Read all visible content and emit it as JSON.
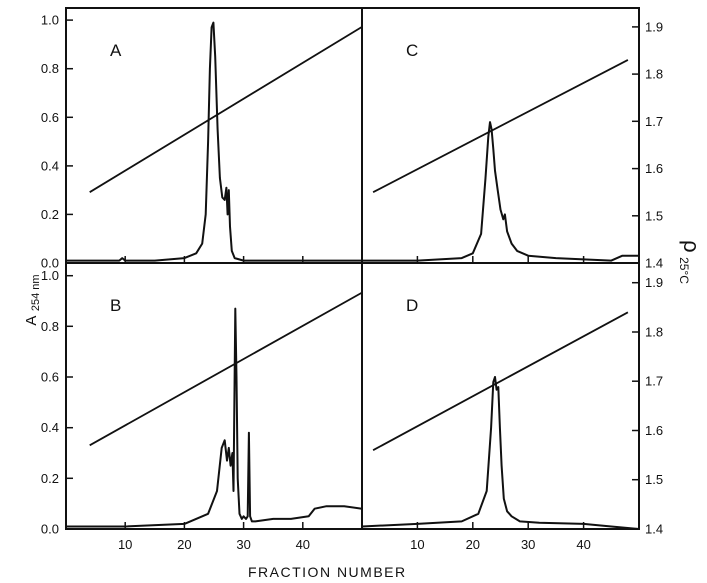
{
  "figure": {
    "x_axis_title": "FRACTION NUMBER",
    "left_axis_title_main": "A",
    "left_axis_title_sub": "254 nm",
    "right_axis_title_main": "ρ",
    "right_axis_title_sub": "25°C"
  },
  "chart_data": [
    {
      "type": "line",
      "panel": "A",
      "label": "A",
      "xlim": [
        0,
        50
      ],
      "ylim": [
        0,
        1.05
      ],
      "y2lim": [
        1.4,
        1.94
      ],
      "x_ticks": [
        10,
        20,
        30,
        40
      ],
      "x_tick_labels": [],
      "y_ticks": [
        0.0,
        0.2,
        0.4,
        0.6,
        0.8,
        1.0
      ],
      "y_tick_labels": [
        "0.0",
        "0.2",
        "0.4",
        "0.6",
        "0.8",
        "1.0"
      ],
      "y2_ticks": [],
      "y2_tick_labels": [],
      "absorbance": {
        "x": [
          0,
          5,
          9,
          9.5,
          10,
          10.5,
          15,
          20,
          22,
          23,
          23.6,
          24,
          24.3,
          24.6,
          24.9,
          25.2,
          25.6,
          26,
          26.4,
          26.8,
          27.1,
          27.3,
          27.5,
          27.7,
          28,
          28.5,
          30,
          35,
          40,
          45,
          50
        ],
        "y": [
          0.01,
          0.01,
          0.01,
          0.02,
          0.01,
          0.01,
          0.01,
          0.02,
          0.04,
          0.08,
          0.2,
          0.5,
          0.8,
          0.97,
          0.99,
          0.85,
          0.55,
          0.35,
          0.27,
          0.26,
          0.31,
          0.2,
          0.3,
          0.15,
          0.05,
          0.02,
          0.01,
          0.01,
          0.01,
          0.01,
          0.01
        ]
      },
      "density": {
        "x": [
          4,
          50
        ],
        "y": [
          1.55,
          1.9
        ]
      }
    },
    {
      "type": "line",
      "panel": "C",
      "label": "C",
      "xlim": [
        0,
        50
      ],
      "ylim": [
        0,
        1.05
      ],
      "y2lim": [
        1.4,
        1.94
      ],
      "x_ticks": [
        10,
        20,
        30,
        40
      ],
      "x_tick_labels": [],
      "y_ticks": [],
      "y_tick_labels": [],
      "y2_ticks": [
        1.4,
        1.5,
        1.6,
        1.7,
        1.8,
        1.9
      ],
      "y2_tick_labels": [
        "1.4",
        "1.5",
        "1.6",
        "1.7",
        "1.8",
        "1.9"
      ],
      "absorbance": {
        "x": [
          0,
          10,
          18,
          20,
          21.5,
          22.3,
          22.8,
          23.1,
          23.4,
          23.7,
          24,
          24.5,
          25,
          25.5,
          25.8,
          26.2,
          27,
          28,
          30,
          35,
          40,
          45,
          47,
          50
        ],
        "y": [
          0.01,
          0.01,
          0.02,
          0.04,
          0.12,
          0.35,
          0.52,
          0.58,
          0.55,
          0.47,
          0.38,
          0.3,
          0.22,
          0.18,
          0.2,
          0.13,
          0.08,
          0.05,
          0.03,
          0.02,
          0.015,
          0.01,
          0.03,
          0.03
        ]
      },
      "density": {
        "x": [
          2,
          48
        ],
        "y": [
          1.55,
          1.83
        ]
      }
    },
    {
      "type": "line",
      "panel": "B",
      "label": "B",
      "xlim": [
        0,
        50
      ],
      "ylim": [
        0,
        1.05
      ],
      "y2lim": [
        1.4,
        1.94
      ],
      "x_ticks": [
        10,
        20,
        30,
        40
      ],
      "x_tick_labels": [
        "10",
        "20",
        "30",
        "40"
      ],
      "y_ticks": [
        0.0,
        0.2,
        0.4,
        0.6,
        0.8,
        1.0
      ],
      "y_tick_labels": [
        "0.0",
        "0.2",
        "0.4",
        "0.6",
        "0.8",
        "1.0"
      ],
      "y2_ticks": [],
      "y2_tick_labels": [],
      "absorbance": {
        "x": [
          0,
          10,
          20,
          24,
          25.5,
          26.3,
          26.8,
          27.2,
          27.5,
          27.8,
          28.1,
          28.3,
          28.6,
          28.8,
          29.0,
          29.3,
          29.7,
          30.0,
          30.4,
          30.7,
          30.9,
          31.1,
          31.4,
          32,
          35,
          38,
          41,
          42,
          44,
          47,
          50
        ],
        "y": [
          0.01,
          0.01,
          0.02,
          0.06,
          0.15,
          0.32,
          0.35,
          0.27,
          0.32,
          0.25,
          0.3,
          0.15,
          0.87,
          0.6,
          0.2,
          0.06,
          0.04,
          0.05,
          0.04,
          0.05,
          0.38,
          0.05,
          0.03,
          0.03,
          0.04,
          0.04,
          0.05,
          0.08,
          0.09,
          0.09,
          0.08
        ]
      },
      "density": {
        "x": [
          4,
          50
        ],
        "y": [
          1.57,
          1.88
        ]
      }
    },
    {
      "type": "line",
      "panel": "D",
      "label": "D",
      "xlim": [
        0,
        50
      ],
      "ylim": [
        0,
        1.05
      ],
      "y2lim": [
        1.4,
        1.94
      ],
      "x_ticks": [
        10,
        20,
        30,
        40
      ],
      "x_tick_labels": [
        "10",
        "20",
        "30",
        "40"
      ],
      "y_ticks": [],
      "y_tick_labels": [],
      "y2_ticks": [
        1.4,
        1.5,
        1.6,
        1.7,
        1.8,
        1.9
      ],
      "y2_tick_labels": [
        "1.4",
        "1.5",
        "1.6",
        "1.7",
        "1.8",
        "1.9"
      ],
      "absorbance": {
        "x": [
          0,
          10,
          18,
          21,
          22.5,
          23.3,
          23.7,
          24,
          24.3,
          24.6,
          24.9,
          25.2,
          25.6,
          26.2,
          27,
          28.5,
          32,
          40,
          45,
          50
        ],
        "y": [
          0.01,
          0.02,
          0.03,
          0.06,
          0.15,
          0.4,
          0.58,
          0.6,
          0.55,
          0.56,
          0.4,
          0.25,
          0.12,
          0.07,
          0.05,
          0.03,
          0.025,
          0.02,
          0.01,
          0.0
        ]
      },
      "density": {
        "x": [
          2,
          48
        ],
        "y": [
          1.56,
          1.84
        ]
      }
    }
  ]
}
